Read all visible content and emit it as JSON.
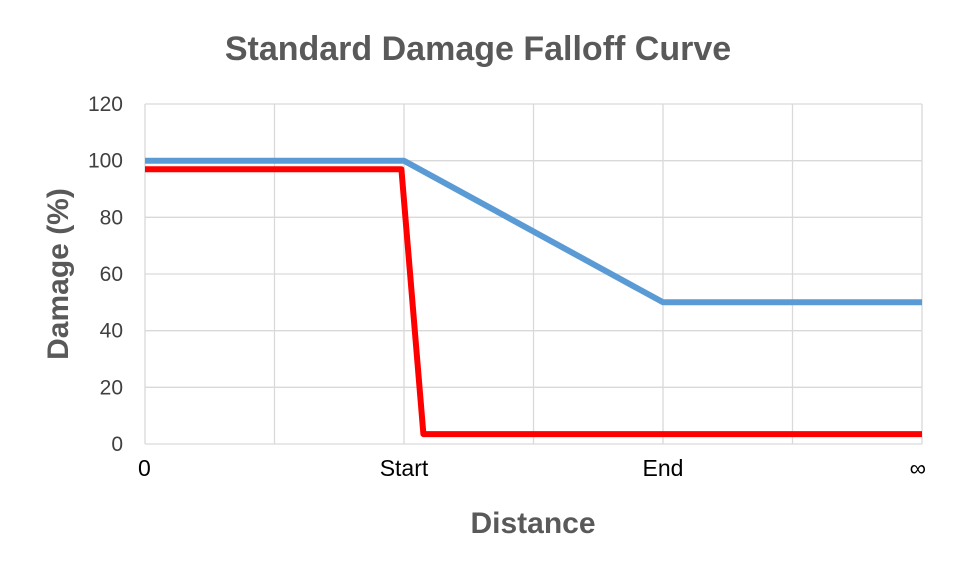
{
  "chart_data": {
    "type": "line",
    "title": "Standard Damage Falloff Curve",
    "xlabel": "Distance",
    "ylabel": "Damage (%)",
    "categories": [
      "0",
      "",
      "Start",
      "",
      "End",
      "",
      "∞"
    ],
    "ylim": [
      0,
      120
    ],
    "yticks": [
      0,
      20,
      40,
      60,
      80,
      100,
      120
    ],
    "grid": true,
    "series": [
      {
        "color": "#5b9bd5",
        "points": [
          [
            0,
            100
          ],
          [
            2,
            100
          ],
          [
            4,
            50
          ],
          [
            6,
            50
          ]
        ]
      },
      {
        "color": "#ff0000",
        "points": [
          [
            0,
            97
          ],
          [
            1.98,
            97
          ],
          [
            2.15,
            3.5
          ],
          [
            6,
            3.5
          ]
        ]
      }
    ]
  }
}
